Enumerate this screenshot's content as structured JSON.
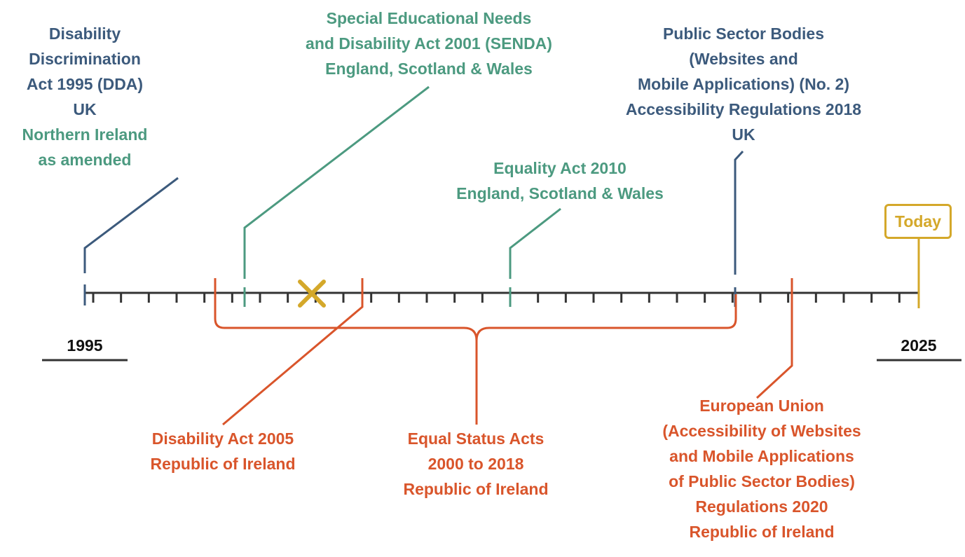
{
  "colors": {
    "uk": "#3c5a7c",
    "britain": "#4c9a80",
    "ireland": "#d9552b",
    "today": "#d4a82a",
    "axis": "#333333"
  },
  "timeline": {
    "start_year": "1995",
    "end_year": "2025",
    "today_label": "Today",
    "removed_marker_icon": "cross-icon"
  },
  "events": {
    "dda": {
      "title": [
        "Disability",
        "Discrimination",
        "Act 1995 (DDA)",
        "UK"
      ],
      "note": [
        "Northern Ireland",
        "as amended"
      ],
      "year": 1995
    },
    "senda": {
      "title": [
        "Special Educational Needs",
        "and Disability Act 2001 (SENDA)",
        "England, Scotland & Wales"
      ],
      "year": 2001
    },
    "equality": {
      "title": [
        "Equality Act 2010",
        "England, Scotland & Wales"
      ],
      "year": 2010
    },
    "psb": {
      "title": [
        "Public Sector Bodies",
        "(Websites and",
        "Mobile Applications) (No. 2)",
        "Accessibility Regulations 2018",
        "UK"
      ],
      "year": 2018
    },
    "disability_act_ie": {
      "title": [
        "Disability Act 2005",
        "Republic of Ireland"
      ],
      "year": 2005
    },
    "equal_status": {
      "title": [
        "Equal Status Acts",
        "2000 to 2018",
        "Republic of Ireland"
      ],
      "years": [
        2000,
        2018
      ]
    },
    "eu_regs": {
      "title": [
        "European Union",
        "(Accessibility of Websites",
        "and Mobile Applications",
        "of Public Sector Bodies)",
        "Regulations 2020",
        "Republic of Ireland"
      ],
      "year": 2020
    }
  }
}
